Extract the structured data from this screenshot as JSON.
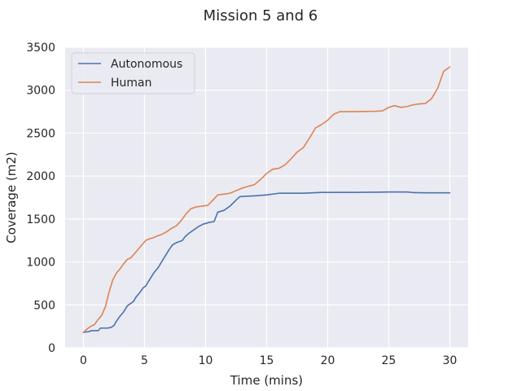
{
  "chart_data": {
    "type": "line",
    "title": "Mission 5 and 6",
    "xlabel": "Time (mins)",
    "ylabel": "Coverage (m2)",
    "xlim": [
      -1.5,
      31.5
    ],
    "ylim": [
      0,
      3500
    ],
    "xticks": [
      0,
      5,
      10,
      15,
      20,
      25,
      30
    ],
    "yticks": [
      0,
      500,
      1000,
      1500,
      2000,
      2500,
      3000,
      3500
    ],
    "grid": true,
    "legend_position": "upper-left",
    "series": [
      {
        "name": "Autonomous",
        "color": "#4c72b0",
        "x": [
          0,
          0.5,
          0.6,
          1.2,
          1.4,
          2.0,
          2.3,
          2.5,
          2.7,
          3.0,
          3.3,
          3.6,
          3.9,
          4.1,
          4.3,
          4.6,
          4.9,
          5.1,
          5.4,
          5.8,
          6.1,
          6.4,
          6.7,
          7.0,
          7.3,
          7.7,
          8.1,
          8.3,
          8.6,
          9.0,
          9.4,
          9.8,
          10.3,
          10.7,
          11.0,
          11.5,
          12.0,
          12.5,
          12.8,
          13.3,
          14.0,
          15.0,
          16.0,
          18.0,
          19.5,
          22.0,
          24.0,
          25.0,
          26.5,
          27.0,
          28.0,
          30.0
        ],
        "y": [
          180,
          190,
          200,
          200,
          230,
          230,
          240,
          260,
          310,
          370,
          420,
          490,
          520,
          540,
          590,
          640,
          700,
          720,
          790,
          880,
          930,
          1000,
          1070,
          1140,
          1200,
          1230,
          1250,
          1290,
          1330,
          1370,
          1410,
          1440,
          1460,
          1470,
          1580,
          1600,
          1650,
          1720,
          1760,
          1765,
          1770,
          1780,
          1800,
          1800,
          1810,
          1810,
          1812,
          1815,
          1815,
          1808,
          1805,
          1805
        ]
      },
      {
        "name": "Human",
        "color": "#dd8452",
        "x": [
          0,
          0.3,
          0.6,
          0.9,
          1.2,
          1.5,
          1.8,
          2.1,
          2.4,
          2.7,
          3.0,
          3.3,
          3.6,
          3.9,
          4.2,
          4.5,
          4.8,
          5.1,
          5.4,
          5.7,
          6.0,
          6.4,
          6.8,
          7.2,
          7.6,
          8.0,
          8.4,
          8.8,
          9.2,
          9.7,
          10.2,
          10.6,
          11.0,
          11.5,
          12.0,
          12.5,
          13.0,
          13.5,
          14.0,
          14.5,
          15.0,
          15.5,
          16.0,
          16.5,
          17.0,
          17.5,
          18.0,
          18.5,
          19.0,
          19.5,
          20.0,
          20.5,
          21.0,
          22.0,
          23.0,
          24.0,
          24.5,
          25.0,
          25.5,
          26.0,
          26.5,
          27.0,
          27.5,
          28.0,
          28.5,
          29.0,
          29.5,
          30.0
        ],
        "y": [
          180,
          220,
          250,
          270,
          330,
          380,
          480,
          650,
          790,
          870,
          920,
          980,
          1030,
          1050,
          1100,
          1150,
          1200,
          1250,
          1270,
          1280,
          1300,
          1320,
          1350,
          1390,
          1420,
          1480,
          1560,
          1620,
          1640,
          1650,
          1660,
          1720,
          1780,
          1790,
          1800,
          1830,
          1860,
          1880,
          1900,
          1960,
          2030,
          2080,
          2090,
          2130,
          2200,
          2280,
          2330,
          2440,
          2560,
          2600,
          2650,
          2720,
          2750,
          2750,
          2752,
          2755,
          2760,
          2800,
          2820,
          2800,
          2810,
          2830,
          2840,
          2845,
          2900,
          3020,
          3220,
          3270
        ]
      }
    ]
  }
}
